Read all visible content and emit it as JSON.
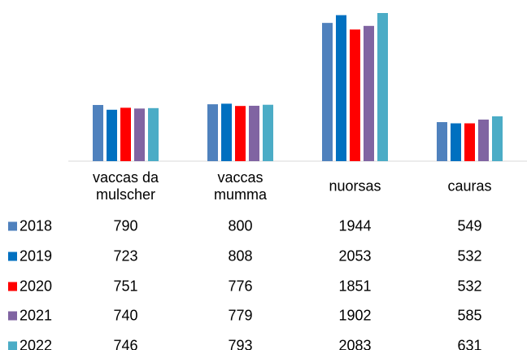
{
  "chart_data": {
    "type": "bar",
    "categories": [
      "vaccas da\nmulscher",
      "vaccas\nmumma",
      "nuorsas",
      "cauras"
    ],
    "series": [
      {
        "name": "2018",
        "color": "#4f81bd",
        "values": [
          790,
          800,
          1944,
          549
        ]
      },
      {
        "name": "2019",
        "color": "#0070c0",
        "values": [
          723,
          808,
          2053,
          532
        ]
      },
      {
        "name": "2020",
        "color": "#ff0000",
        "values": [
          751,
          776,
          1851,
          532
        ]
      },
      {
        "name": "2021",
        "color": "#8064a2",
        "values": [
          740,
          779,
          1902,
          585
        ]
      },
      {
        "name": "2022",
        "color": "#4bacc6",
        "values": [
          746,
          793,
          2083,
          631
        ]
      }
    ]
  }
}
